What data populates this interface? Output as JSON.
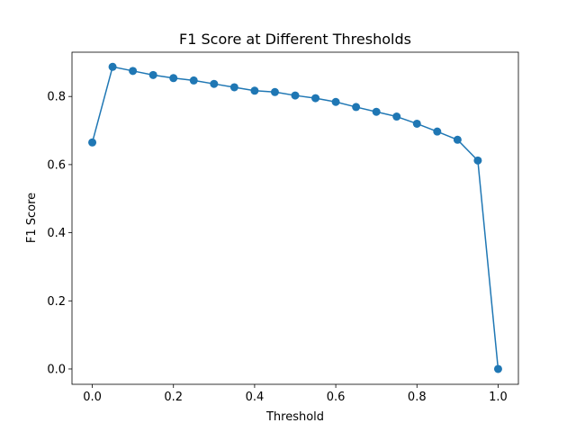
{
  "chart_data": {
    "type": "line",
    "title": "F1 Score at Different Thresholds",
    "xlabel": "Threshold",
    "ylabel": "F1 Score",
    "xlim": [
      -0.05,
      1.05
    ],
    "ylim": [
      -0.045,
      0.93
    ],
    "xticks": [
      0.0,
      0.2,
      0.4,
      0.6,
      0.8,
      1.0
    ],
    "xtick_labels": [
      "0.0",
      "0.2",
      "0.4",
      "0.6",
      "0.8",
      "1.0"
    ],
    "yticks": [
      0.0,
      0.2,
      0.4,
      0.6,
      0.8
    ],
    "ytick_labels": [
      "0.0",
      "0.2",
      "0.4",
      "0.6",
      "0.8"
    ],
    "grid": false,
    "marker": "circle",
    "color": "#1f77b4",
    "series": [
      {
        "x": [
          0.0,
          0.05,
          0.1,
          0.15,
          0.2,
          0.25,
          0.3,
          0.35,
          0.4,
          0.45,
          0.5,
          0.55,
          0.6,
          0.65,
          0.7,
          0.75,
          0.8,
          0.85,
          0.9,
          0.95,
          1.0
        ],
        "y": [
          0.665,
          0.887,
          0.875,
          0.863,
          0.854,
          0.847,
          0.837,
          0.827,
          0.817,
          0.813,
          0.803,
          0.795,
          0.784,
          0.769,
          0.755,
          0.741,
          0.72,
          0.697,
          0.673,
          0.612,
          0.0
        ]
      }
    ]
  }
}
